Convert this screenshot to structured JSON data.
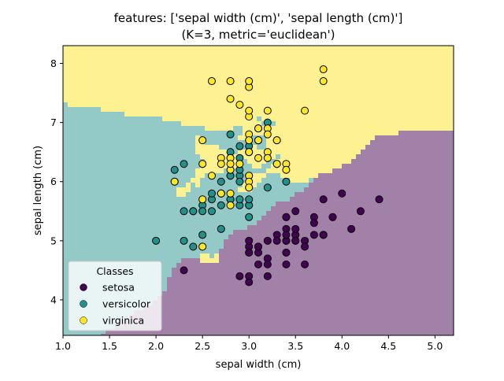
{
  "chart_data": {
    "type": "scatter",
    "title": "features: ['sepal width (cm)', 'sepal length (cm)']",
    "subtitle": "(K=3, metric='euclidean')",
    "xlabel": "sepal width (cm)",
    "ylabel": "sepal length (cm)",
    "xlim": [
      1.0,
      5.2
    ],
    "ylim": [
      3.4,
      8.3
    ],
    "xticks": [
      1.0,
      1.5,
      2.0,
      2.5,
      3.0,
      3.5,
      4.0,
      4.5,
      5.0
    ],
    "xtick_labels": [
      "1.0",
      "1.5",
      "2.0",
      "2.5",
      "3.0",
      "3.5",
      "4.0",
      "4.5",
      "5.0"
    ],
    "yticks": [
      4,
      5,
      6,
      7,
      8
    ],
    "ytick_labels": [
      "4",
      "5",
      "6",
      "7",
      "8"
    ],
    "grid": false,
    "legend": {
      "title": "Classes",
      "placement": "lower-left"
    },
    "region_colors": {
      "setosa": "#a281a8",
      "versicolor": "#93c9c6",
      "virginica": "#fdf192"
    },
    "series": [
      {
        "name": "setosa",
        "color": "#440154",
        "points": [
          [
            3.5,
            5.1
          ],
          [
            3.0,
            4.9
          ],
          [
            3.2,
            4.7
          ],
          [
            3.1,
            4.6
          ],
          [
            3.6,
            5.0
          ],
          [
            3.9,
            5.4
          ],
          [
            3.4,
            4.6
          ],
          [
            3.4,
            5.0
          ],
          [
            2.9,
            4.4
          ],
          [
            3.1,
            4.9
          ],
          [
            3.7,
            5.4
          ],
          [
            3.4,
            4.8
          ],
          [
            3.0,
            4.8
          ],
          [
            3.0,
            4.3
          ],
          [
            4.0,
            5.8
          ],
          [
            4.4,
            5.7
          ],
          [
            3.9,
            5.4
          ],
          [
            3.5,
            5.1
          ],
          [
            3.8,
            5.7
          ],
          [
            3.8,
            5.1
          ],
          [
            3.4,
            5.4
          ],
          [
            3.7,
            5.1
          ],
          [
            3.6,
            4.6
          ],
          [
            3.3,
            5.1
          ],
          [
            3.4,
            4.8
          ],
          [
            3.0,
            5.0
          ],
          [
            3.4,
            5.0
          ],
          [
            3.5,
            5.2
          ],
          [
            3.4,
            5.2
          ],
          [
            3.2,
            4.7
          ],
          [
            3.1,
            4.8
          ],
          [
            3.4,
            5.4
          ],
          [
            4.1,
            5.2
          ],
          [
            4.2,
            5.5
          ],
          [
            3.1,
            4.9
          ],
          [
            3.2,
            5.0
          ],
          [
            3.5,
            5.5
          ],
          [
            3.6,
            4.9
          ],
          [
            3.0,
            4.4
          ],
          [
            3.4,
            5.1
          ],
          [
            3.5,
            5.0
          ],
          [
            2.3,
            4.5
          ],
          [
            3.2,
            4.4
          ],
          [
            3.5,
            5.0
          ],
          [
            3.8,
            5.1
          ],
          [
            3.0,
            4.8
          ],
          [
            3.8,
            5.1
          ],
          [
            3.2,
            4.6
          ],
          [
            3.7,
            5.3
          ],
          [
            3.3,
            5.0
          ]
        ]
      },
      {
        "name": "versicolor",
        "color": "#21918c",
        "points": [
          [
            3.2,
            7.0
          ],
          [
            3.2,
            6.4
          ],
          [
            3.1,
            6.9
          ],
          [
            2.3,
            5.5
          ],
          [
            2.8,
            6.5
          ],
          [
            2.8,
            5.7
          ],
          [
            3.3,
            6.3
          ],
          [
            2.4,
            4.9
          ],
          [
            2.9,
            6.6
          ],
          [
            2.7,
            5.2
          ],
          [
            2.0,
            5.0
          ],
          [
            3.0,
            5.9
          ],
          [
            2.2,
            6.0
          ],
          [
            2.9,
            6.1
          ],
          [
            2.9,
            5.6
          ],
          [
            3.1,
            6.7
          ],
          [
            3.0,
            5.6
          ],
          [
            2.7,
            5.8
          ],
          [
            2.2,
            6.2
          ],
          [
            2.5,
            5.6
          ],
          [
            3.2,
            5.9
          ],
          [
            2.8,
            6.1
          ],
          [
            2.5,
            6.3
          ],
          [
            2.8,
            6.1
          ],
          [
            2.9,
            6.4
          ],
          [
            3.0,
            6.6
          ],
          [
            2.8,
            6.8
          ],
          [
            3.0,
            6.7
          ],
          [
            2.9,
            6.0
          ],
          [
            2.6,
            5.7
          ],
          [
            2.4,
            5.5
          ],
          [
            2.4,
            5.5
          ],
          [
            2.7,
            5.8
          ],
          [
            2.7,
            6.0
          ],
          [
            3.0,
            5.4
          ],
          [
            3.4,
            6.0
          ],
          [
            3.1,
            6.7
          ],
          [
            2.3,
            6.3
          ],
          [
            3.0,
            5.6
          ],
          [
            2.5,
            5.5
          ],
          [
            2.6,
            5.5
          ],
          [
            3.0,
            6.1
          ],
          [
            2.6,
            5.8
          ],
          [
            2.3,
            5.0
          ],
          [
            2.7,
            5.6
          ],
          [
            3.0,
            5.7
          ],
          [
            2.9,
            5.7
          ],
          [
            2.9,
            6.2
          ],
          [
            2.5,
            5.1
          ],
          [
            2.8,
            5.7
          ]
        ]
      },
      {
        "name": "virginica",
        "color": "#fde725",
        "points": [
          [
            3.3,
            6.3
          ],
          [
            2.7,
            5.8
          ],
          [
            3.0,
            7.1
          ],
          [
            2.9,
            6.3
          ],
          [
            3.0,
            6.5
          ],
          [
            3.0,
            7.6
          ],
          [
            2.5,
            4.9
          ],
          [
            2.9,
            7.3
          ],
          [
            2.5,
            6.7
          ],
          [
            3.6,
            7.2
          ],
          [
            3.2,
            6.5
          ],
          [
            2.7,
            6.4
          ],
          [
            3.0,
            6.8
          ],
          [
            2.5,
            5.7
          ],
          [
            2.8,
            5.8
          ],
          [
            3.2,
            6.4
          ],
          [
            3.0,
            6.5
          ],
          [
            3.8,
            7.7
          ],
          [
            2.6,
            7.7
          ],
          [
            2.2,
            6.0
          ],
          [
            3.2,
            6.9
          ],
          [
            2.8,
            5.6
          ],
          [
            2.8,
            7.7
          ],
          [
            2.7,
            6.3
          ],
          [
            3.3,
            6.7
          ],
          [
            3.2,
            7.2
          ],
          [
            2.8,
            6.2
          ],
          [
            3.0,
            6.1
          ],
          [
            2.8,
            6.4
          ],
          [
            3.0,
            7.2
          ],
          [
            2.8,
            7.4
          ],
          [
            3.8,
            7.9
          ],
          [
            2.8,
            6.4
          ],
          [
            2.8,
            6.3
          ],
          [
            2.6,
            6.1
          ],
          [
            3.0,
            7.7
          ],
          [
            3.4,
            6.3
          ],
          [
            3.1,
            6.4
          ],
          [
            3.0,
            6.0
          ],
          [
            3.1,
            6.9
          ],
          [
            3.1,
            6.7
          ],
          [
            3.1,
            6.9
          ],
          [
            2.7,
            5.8
          ],
          [
            3.2,
            6.8
          ],
          [
            3.3,
            6.7
          ],
          [
            3.0,
            6.7
          ],
          [
            2.5,
            6.3
          ],
          [
            3.0,
            6.5
          ],
          [
            3.4,
            6.2
          ],
          [
            3.0,
            5.9
          ]
        ]
      }
    ]
  }
}
